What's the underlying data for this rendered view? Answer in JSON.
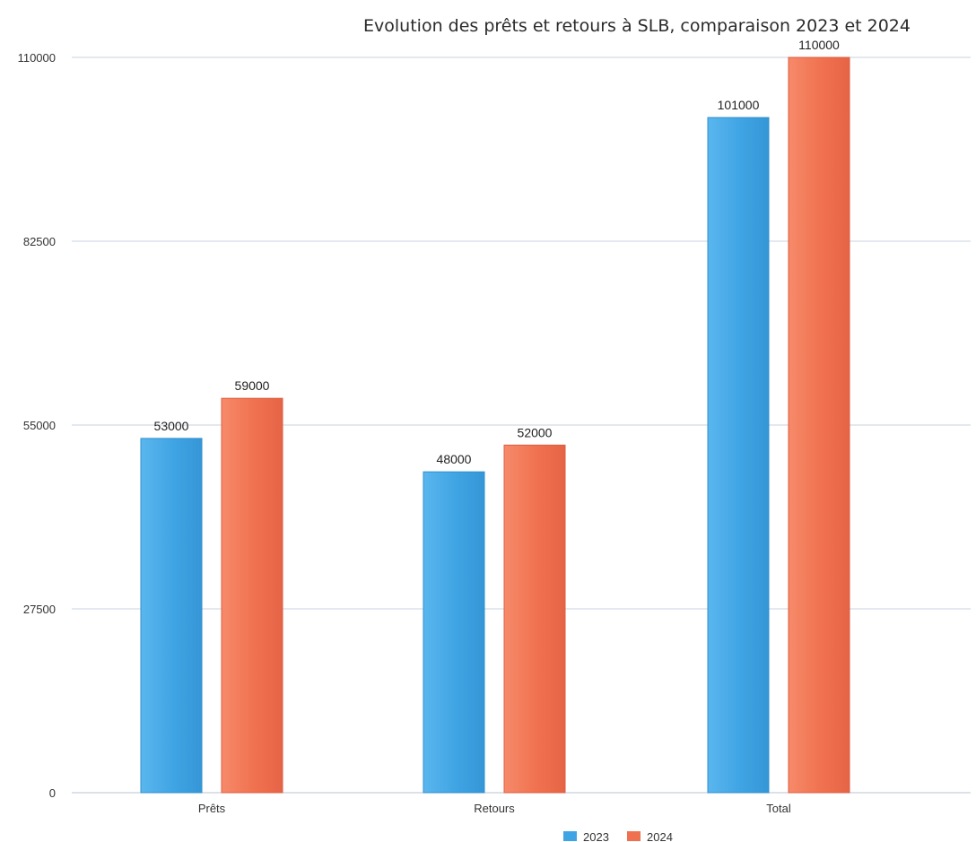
{
  "chart_data": {
    "type": "bar",
    "title": "Evolution des prêts et retours à SLB, comparaison 2023 et 2024",
    "categories": [
      "Prêts",
      "Retours",
      "Total"
    ],
    "series": [
      {
        "name": "2023",
        "values": [
          53000,
          48000,
          101000
        ],
        "color": "#3fa4e3"
      },
      {
        "name": "2024",
        "values": [
          59000,
          52000,
          110000
        ],
        "color": "#f0714f"
      }
    ],
    "y_ticks": [
      "0",
      "27500",
      "55000",
      "82500",
      "110000"
    ],
    "ylim": [
      0,
      110000
    ],
    "grid": true,
    "legend_position": "bottom-center",
    "xlabel": "",
    "ylabel": ""
  }
}
